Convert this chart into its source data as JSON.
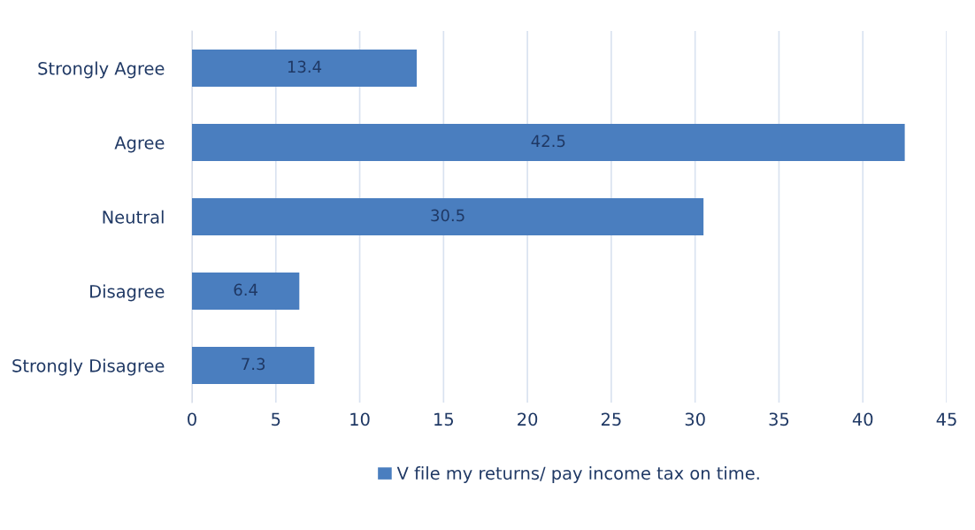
{
  "chart_data": {
    "type": "bar",
    "orientation": "horizontal",
    "categories": [
      "Strongly Agree",
      "Agree",
      "Neutral",
      "Disagree",
      "Strongly Disagree"
    ],
    "series": [
      {
        "name": "V file my returns/ pay income tax on time.",
        "color": "#4a7ebf",
        "values": [
          13.4,
          42.5,
          30.5,
          6.4,
          7.3
        ]
      }
    ],
    "xlim": [
      0,
      45
    ],
    "xticks": [
      0,
      5,
      10,
      15,
      20,
      25,
      30,
      35,
      40,
      45
    ],
    "grid": "x",
    "legend": "bottom",
    "data_labels": true
  }
}
